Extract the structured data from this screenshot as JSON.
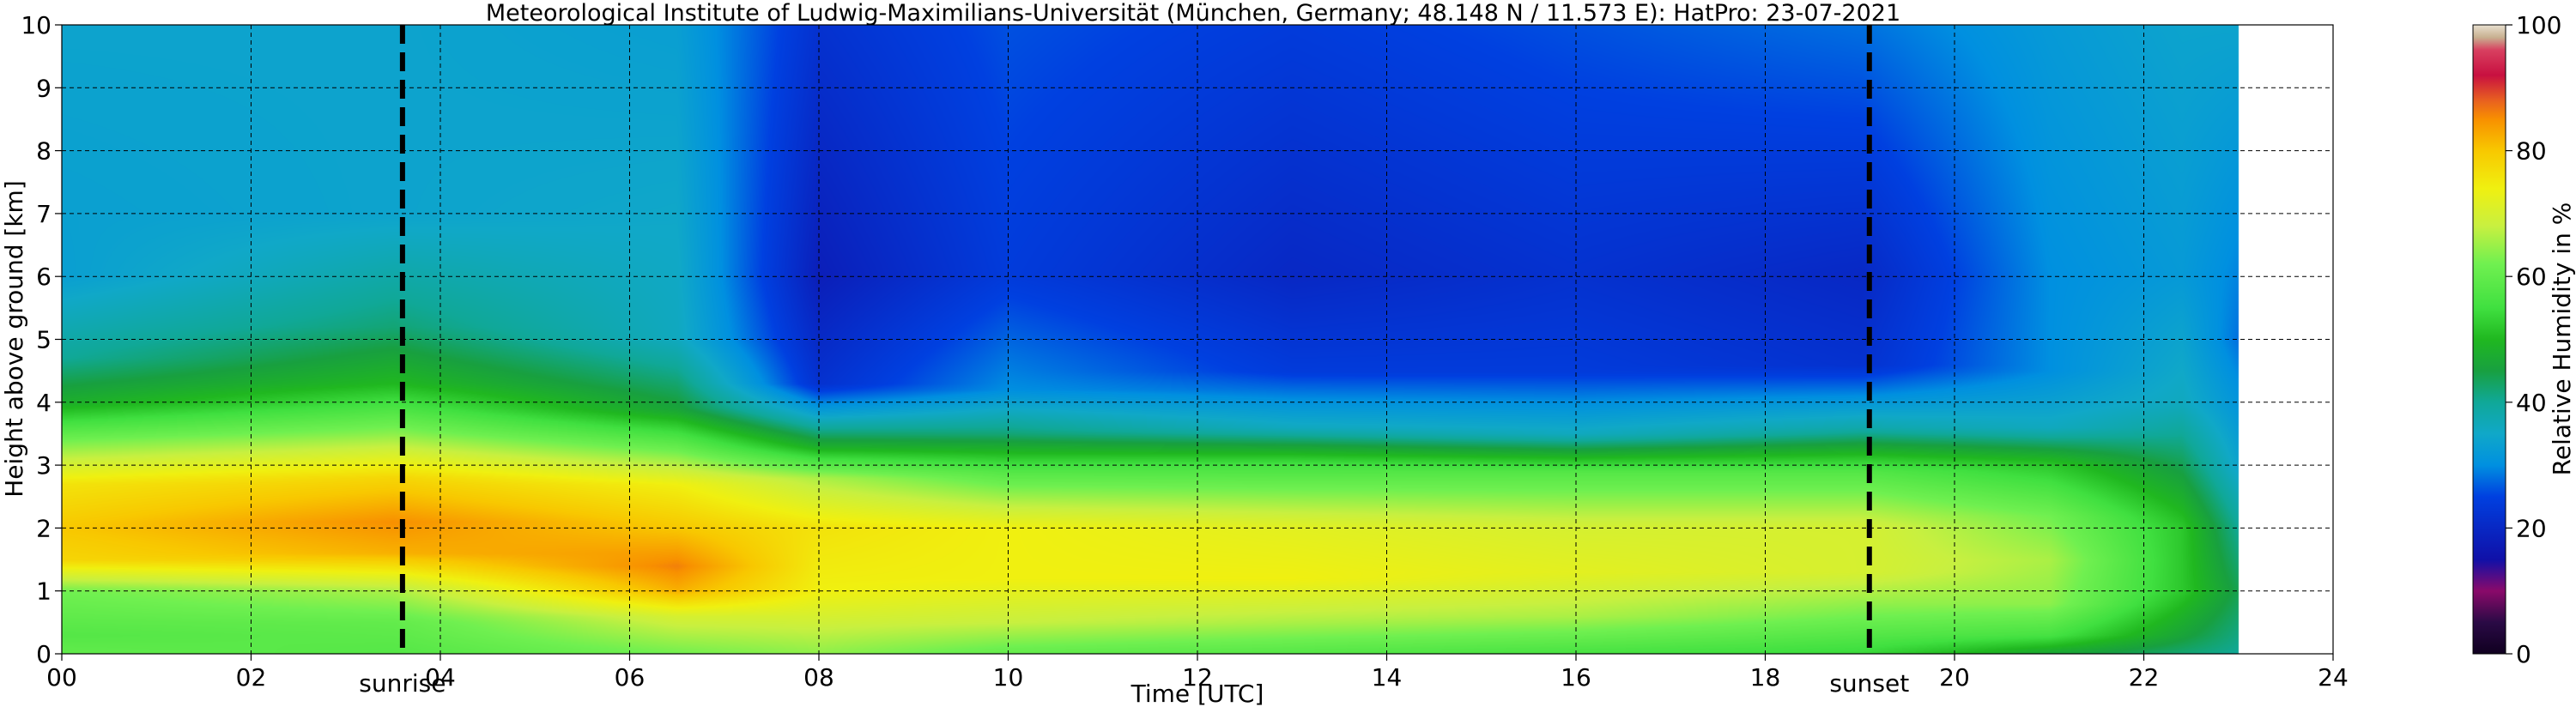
{
  "chart_data": {
    "type": "heatmap",
    "title": "Meteorological Institute of Ludwig-Maximilians-Universität (München, Germany; 48.148 N / 11.573 E):    HatPro: 23-07-2021",
    "xlabel": "Time [UTC]",
    "ylabel": "Height above ground [km]",
    "xlim": [
      0,
      24
    ],
    "ylim": [
      0,
      10
    ],
    "x_ticks": [
      "00",
      "02",
      "04",
      "06",
      "08",
      "10",
      "12",
      "14",
      "16",
      "18",
      "20",
      "22",
      "24"
    ],
    "y_ticks": [
      "0",
      "1",
      "2",
      "3",
      "4",
      "5",
      "6",
      "7",
      "8",
      "9",
      "10"
    ],
    "grid": true,
    "data_time_range": [
      0,
      23.0
    ],
    "events": [
      {
        "label": "sunrise",
        "time": 3.6
      },
      {
        "label": "sunset",
        "time": 19.1
      }
    ],
    "colorbar": {
      "label": "Relative Humidity in %",
      "ticks": [
        "0",
        "20",
        "40",
        "60",
        "80",
        "100"
      ],
      "range": [
        0,
        100
      ],
      "stops": [
        {
          "v": 0,
          "c": "#100020"
        },
        {
          "v": 5,
          "c": "#2a0a45"
        },
        {
          "v": 10,
          "c": "#8a0a6a"
        },
        {
          "v": 15,
          "c": "#1010a8"
        },
        {
          "v": 25,
          "c": "#0040e0"
        },
        {
          "v": 30,
          "c": "#0090e0"
        },
        {
          "v": 35,
          "c": "#10a8c8"
        },
        {
          "v": 40,
          "c": "#10a898"
        },
        {
          "v": 45,
          "c": "#18a040"
        },
        {
          "v": 50,
          "c": "#20b820"
        },
        {
          "v": 55,
          "c": "#40e040"
        },
        {
          "v": 62,
          "c": "#70f050"
        },
        {
          "v": 68,
          "c": "#c8f040"
        },
        {
          "v": 74,
          "c": "#f0f010"
        },
        {
          "v": 80,
          "c": "#f8c800"
        },
        {
          "v": 85,
          "c": "#f89000"
        },
        {
          "v": 88,
          "c": "#e86020"
        },
        {
          "v": 92,
          "c": "#c81040"
        },
        {
          "v": 96,
          "c": "#d84060"
        },
        {
          "v": 98,
          "c": "#c8b090"
        },
        {
          "v": 100,
          "c": "#e8e0d0"
        }
      ]
    },
    "humidity_profiles_approx": [
      {
        "t": 0,
        "profile": [
          [
            0,
            60
          ],
          [
            0.3,
            58
          ],
          [
            1.0,
            62
          ],
          [
            1.5,
            78
          ],
          [
            2.0,
            80
          ],
          [
            2.7,
            76
          ],
          [
            3.4,
            62
          ],
          [
            4.0,
            48
          ],
          [
            4.7,
            40
          ],
          [
            6,
            33
          ],
          [
            10,
            34
          ]
        ]
      },
      {
        "t": 3.5,
        "profile": [
          [
            0,
            58
          ],
          [
            0.5,
            60
          ],
          [
            1.0,
            66
          ],
          [
            1.6,
            82
          ],
          [
            2.1,
            85
          ],
          [
            2.8,
            78
          ],
          [
            3.5,
            64
          ],
          [
            4.3,
            50
          ],
          [
            5.2,
            42
          ],
          [
            7,
            34
          ],
          [
            10,
            34
          ]
        ]
      },
      {
        "t": 6.5,
        "profile": [
          [
            0,
            62
          ],
          [
            0.6,
            70
          ],
          [
            1.0,
            82
          ],
          [
            1.4,
            86
          ],
          [
            2.0,
            80
          ],
          [
            2.7,
            74
          ],
          [
            3.4,
            58
          ],
          [
            3.9,
            46
          ],
          [
            5,
            36
          ],
          [
            10,
            33
          ]
        ]
      },
      {
        "t": 8,
        "profile": [
          [
            0,
            64
          ],
          [
            0.4,
            68
          ],
          [
            1.0,
            74
          ],
          [
            2.0,
            76
          ],
          [
            2.8,
            66
          ],
          [
            3.3,
            48
          ],
          [
            3.8,
            34
          ],
          [
            4.3,
            22
          ],
          [
            6,
            18
          ],
          [
            10,
            22
          ]
        ]
      },
      {
        "t": 10,
        "profile": [
          [
            0,
            60
          ],
          [
            0.5,
            68
          ],
          [
            1.2,
            74
          ],
          [
            2.0,
            74
          ],
          [
            2.9,
            58
          ],
          [
            3.5,
            42
          ],
          [
            4.2,
            30
          ],
          [
            6,
            24
          ],
          [
            10,
            26
          ]
        ]
      },
      {
        "t": 13,
        "profile": [
          [
            0,
            58
          ],
          [
            0.5,
            66
          ],
          [
            1.2,
            74
          ],
          [
            2.0,
            72
          ],
          [
            3.0,
            56
          ],
          [
            3.6,
            36
          ],
          [
            4.5,
            24
          ],
          [
            6,
            20
          ],
          [
            10,
            24
          ]
        ]
      },
      {
        "t": 16,
        "profile": [
          [
            0,
            56
          ],
          [
            0.6,
            66
          ],
          [
            1.3,
            72
          ],
          [
            2.0,
            70
          ],
          [
            2.9,
            58
          ],
          [
            3.5,
            36
          ],
          [
            4.5,
            24
          ],
          [
            6,
            22
          ],
          [
            10,
            26
          ]
        ]
      },
      {
        "t": 19,
        "profile": [
          [
            0,
            54
          ],
          [
            0.6,
            62
          ],
          [
            1.3,
            70
          ],
          [
            2.0,
            70
          ],
          [
            2.9,
            58
          ],
          [
            3.6,
            38
          ],
          [
            4.6,
            22
          ],
          [
            6,
            20
          ],
          [
            10,
            28
          ]
        ]
      },
      {
        "t": 21,
        "profile": [
          [
            0,
            46
          ],
          [
            0.3,
            56
          ],
          [
            0.8,
            64
          ],
          [
            1.5,
            66
          ],
          [
            2.2,
            62
          ],
          [
            3.0,
            52
          ],
          [
            3.6,
            36
          ],
          [
            4.5,
            30
          ],
          [
            6,
            30
          ],
          [
            10,
            32
          ]
        ]
      },
      {
        "t": 22.4,
        "profile": [
          [
            0,
            42
          ],
          [
            0.3,
            46
          ],
          [
            1.0,
            52
          ],
          [
            2.0,
            52
          ],
          [
            3.0,
            44
          ],
          [
            4.0,
            36
          ],
          [
            6,
            32
          ],
          [
            10,
            34
          ]
        ]
      },
      {
        "t": 23,
        "profile": [
          [
            0,
            40
          ],
          [
            1.0,
            44
          ],
          [
            2.0,
            40
          ],
          [
            3.0,
            34
          ],
          [
            5,
            28
          ],
          [
            10,
            34
          ]
        ]
      }
    ]
  }
}
